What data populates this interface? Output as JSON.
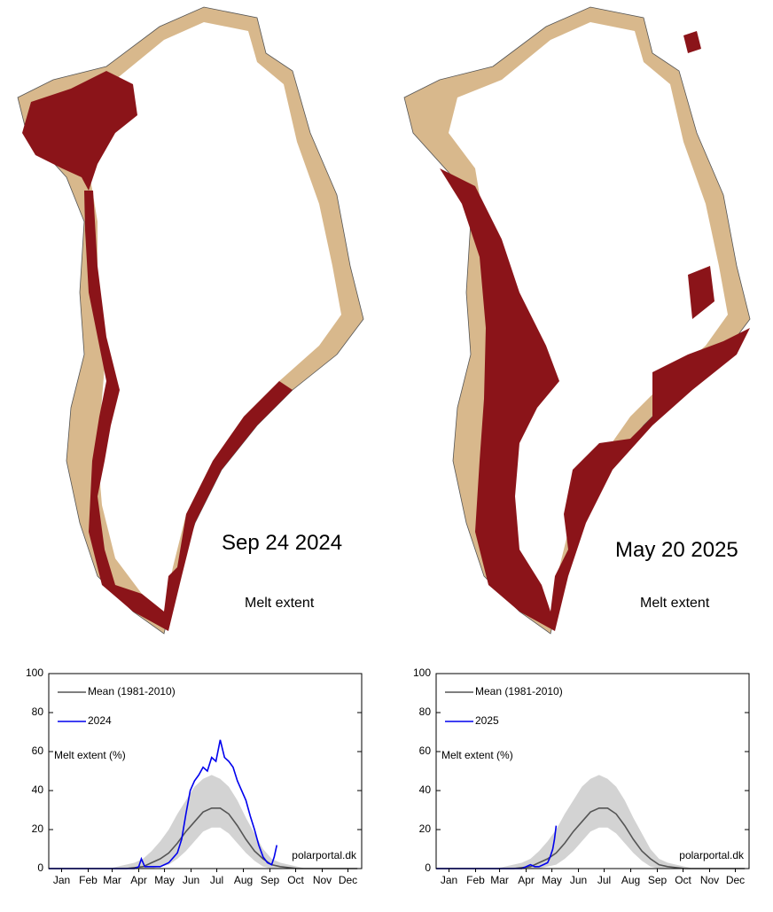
{
  "maps": [
    {
      "date": "Sep 24 2024",
      "label": "Melt extent"
    },
    {
      "date": "May 20 2025",
      "label": "Melt extent"
    }
  ],
  "chart_data": [
    {
      "type": "line",
      "annotation": "Melt extent (%)",
      "source": "polarportal.dk",
      "xlim": [
        0,
        365
      ],
      "xticks": [
        {
          "value": 15,
          "label": "Jan"
        },
        {
          "value": 46,
          "label": "Feb"
        },
        {
          "value": 74,
          "label": "Mar"
        },
        {
          "value": 105,
          "label": "Apr"
        },
        {
          "value": 135,
          "label": "May"
        },
        {
          "value": 166,
          "label": "Jun"
        },
        {
          "value": 196,
          "label": "Jul"
        },
        {
          "value": 227,
          "label": "Aug"
        },
        {
          "value": 258,
          "label": "Sep"
        },
        {
          "value": 288,
          "label": "Oct"
        },
        {
          "value": 319,
          "label": "Nov"
        },
        {
          "value": 349,
          "label": "Dec"
        }
      ],
      "ylim": [
        0,
        100
      ],
      "yticks": [
        0,
        20,
        40,
        60,
        80,
        100
      ],
      "band": {
        "color": "#d3d3d3",
        "x": [
          0,
          10,
          20,
          30,
          40,
          50,
          60,
          70,
          80,
          90,
          100,
          110,
          120,
          130,
          140,
          150,
          160,
          170,
          180,
          190,
          200,
          210,
          220,
          230,
          240,
          250,
          260,
          270,
          280,
          290,
          300,
          310,
          320,
          330,
          340,
          350,
          360
        ],
        "low": [
          0,
          0,
          0,
          0,
          0,
          0,
          0,
          0,
          0,
          0,
          0,
          0,
          0,
          1,
          2,
          5,
          9,
          14,
          19,
          21,
          21,
          18,
          13,
          8,
          4,
          1,
          0,
          0,
          0,
          0,
          0,
          0,
          0,
          0,
          0,
          0,
          0
        ],
        "high": [
          0,
          0,
          0,
          0,
          0,
          0,
          0,
          0,
          1,
          2,
          3,
          5,
          9,
          14,
          20,
          28,
          35,
          42,
          46,
          48,
          46,
          42,
          35,
          26,
          18,
          10,
          5,
          3,
          2,
          1,
          0,
          0,
          0,
          0,
          0,
          0,
          0
        ]
      },
      "series": [
        {
          "name": "Mean (1981-2010)",
          "color": "#555555",
          "x": [
            0,
            10,
            20,
            30,
            40,
            50,
            60,
            70,
            80,
            90,
            100,
            110,
            120,
            130,
            140,
            150,
            160,
            170,
            180,
            190,
            200,
            210,
            220,
            230,
            240,
            250,
            260,
            270,
            280,
            290,
            300,
            310,
            320,
            330,
            340,
            350,
            360
          ],
          "values": [
            0,
            0,
            0,
            0,
            0,
            0,
            0,
            0,
            0,
            0,
            0.5,
            1,
            3,
            5,
            8,
            13,
            19,
            24,
            29,
            31,
            31,
            28,
            22,
            15,
            9,
            5,
            2,
            1,
            0.5,
            0,
            0,
            0,
            0,
            0,
            0,
            0,
            0
          ]
        },
        {
          "name": "2024",
          "color": "#0000ee",
          "x": [
            0,
            20,
            40,
            60,
            80,
            100,
            105,
            108,
            112,
            120,
            130,
            140,
            150,
            155,
            160,
            165,
            170,
            175,
            180,
            185,
            190,
            195,
            200,
            205,
            210,
            215,
            220,
            225,
            230,
            235,
            240,
            245,
            250,
            255,
            260,
            263,
            266
          ],
          "values": [
            0,
            0,
            0,
            0,
            0,
            0,
            1,
            5,
            1,
            1,
            1,
            3,
            8,
            15,
            28,
            40,
            45,
            48,
            52,
            50,
            57,
            55,
            66,
            57,
            55,
            52,
            45,
            40,
            35,
            27,
            20,
            12,
            6,
            3,
            2,
            6,
            12
          ]
        }
      ]
    },
    {
      "type": "line",
      "annotation": "Melt extent (%)",
      "source": "polarportal.dk",
      "xlim": [
        0,
        365
      ],
      "xticks": [
        {
          "value": 15,
          "label": "Jan"
        },
        {
          "value": 46,
          "label": "Feb"
        },
        {
          "value": 74,
          "label": "Mar"
        },
        {
          "value": 105,
          "label": "Apr"
        },
        {
          "value": 135,
          "label": "May"
        },
        {
          "value": 166,
          "label": "Jun"
        },
        {
          "value": 196,
          "label": "Jul"
        },
        {
          "value": 227,
          "label": "Aug"
        },
        {
          "value": 258,
          "label": "Sep"
        },
        {
          "value": 288,
          "label": "Oct"
        },
        {
          "value": 319,
          "label": "Nov"
        },
        {
          "value": 349,
          "label": "Dec"
        }
      ],
      "ylim": [
        0,
        100
      ],
      "yticks": [
        0,
        20,
        40,
        60,
        80,
        100
      ],
      "band": {
        "color": "#d3d3d3",
        "x": [
          0,
          10,
          20,
          30,
          40,
          50,
          60,
          70,
          80,
          90,
          100,
          110,
          120,
          130,
          140,
          150,
          160,
          170,
          180,
          190,
          200,
          210,
          220,
          230,
          240,
          250,
          260,
          270,
          280,
          290,
          300,
          310,
          320,
          330,
          340,
          350,
          360
        ],
        "low": [
          0,
          0,
          0,
          0,
          0,
          0,
          0,
          0,
          0,
          0,
          0,
          0,
          0,
          1,
          2,
          5,
          9,
          14,
          19,
          21,
          21,
          18,
          13,
          8,
          4,
          1,
          0,
          0,
          0,
          0,
          0,
          0,
          0,
          0,
          0,
          0,
          0
        ],
        "high": [
          0,
          0,
          0,
          0,
          0,
          0,
          0,
          0,
          1,
          2,
          3,
          5,
          9,
          14,
          20,
          28,
          35,
          42,
          46,
          48,
          46,
          42,
          35,
          26,
          18,
          10,
          5,
          3,
          2,
          1,
          0,
          0,
          0,
          0,
          0,
          0,
          0
        ]
      },
      "series": [
        {
          "name": "Mean (1981-2010)",
          "color": "#555555",
          "x": [
            0,
            10,
            20,
            30,
            40,
            50,
            60,
            70,
            80,
            90,
            100,
            110,
            120,
            130,
            140,
            150,
            160,
            170,
            180,
            190,
            200,
            210,
            220,
            230,
            240,
            250,
            260,
            270,
            280,
            290,
            300,
            310,
            320,
            330,
            340,
            350,
            360
          ],
          "values": [
            0,
            0,
            0,
            0,
            0,
            0,
            0,
            0,
            0,
            0,
            0.5,
            1,
            3,
            5,
            8,
            13,
            19,
            24,
            29,
            31,
            31,
            28,
            22,
            15,
            9,
            5,
            2,
            1,
            0.5,
            0,
            0,
            0,
            0,
            0,
            0,
            0,
            0
          ]
        },
        {
          "name": "2025",
          "color": "#0000ee",
          "x": [
            0,
            20,
            40,
            60,
            80,
            100,
            105,
            110,
            115,
            120,
            125,
            130,
            133,
            136,
            138,
            140
          ],
          "values": [
            0,
            0,
            0,
            0,
            0,
            0,
            1,
            2,
            1,
            1,
            2,
            3,
            6,
            10,
            15,
            22
          ]
        }
      ]
    }
  ]
}
